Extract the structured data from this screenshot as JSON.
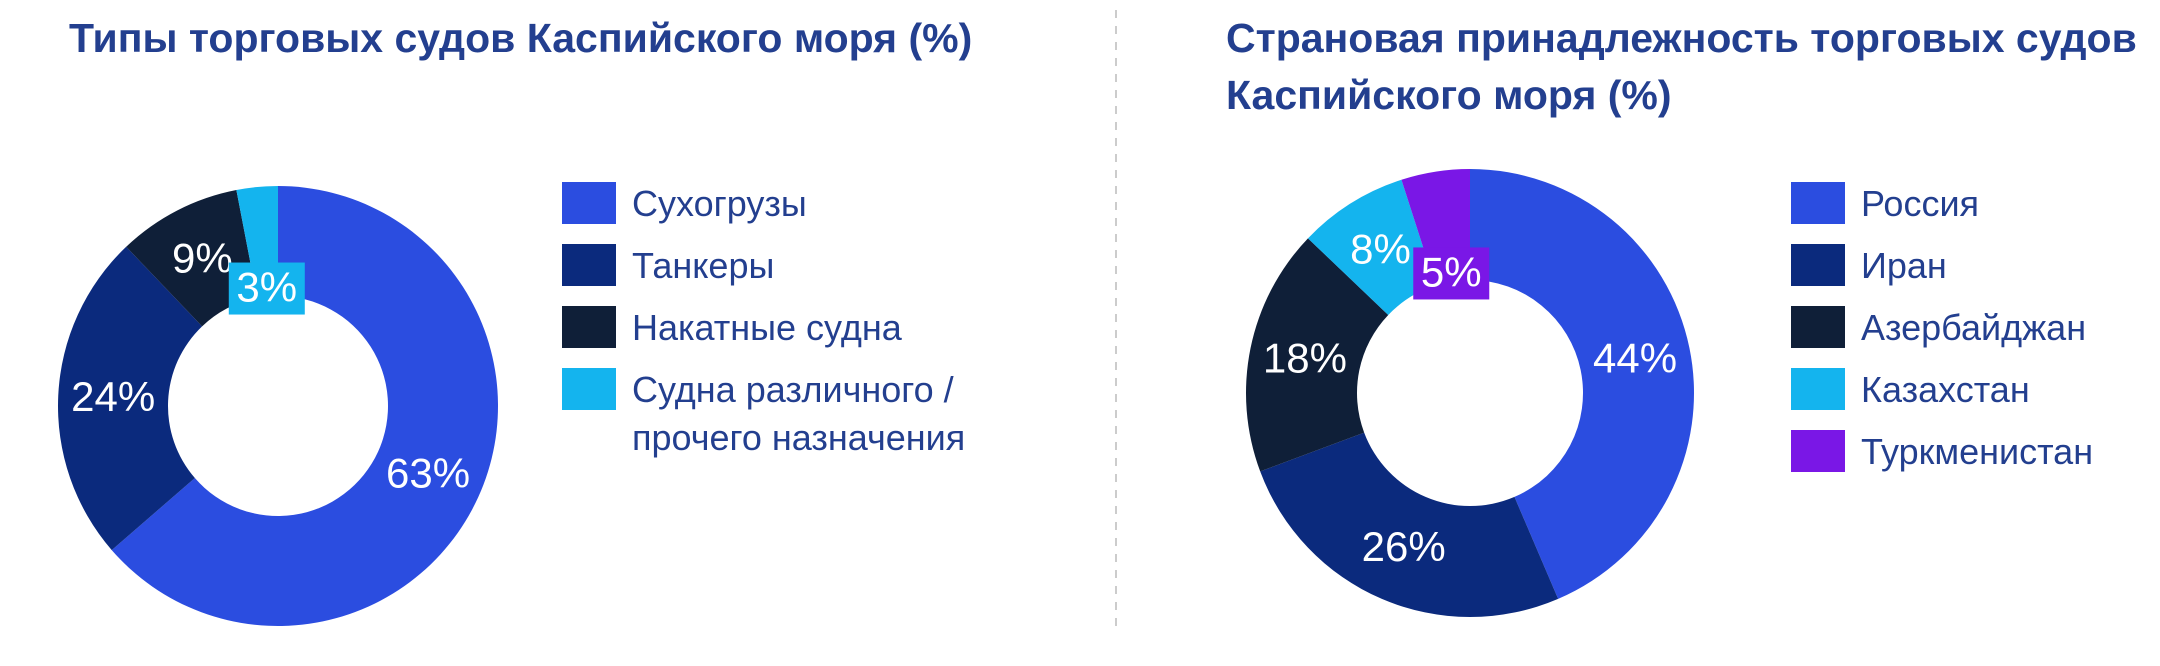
{
  "chart_data": [
    {
      "type": "pie",
      "title": "Типы торговых судов Каспийского моря (%)",
      "categories": [
        "Сухогрузы",
        "Танкеры",
        "Накатные судна",
        "Судна различного / прочего назначения"
      ],
      "values": [
        63,
        24,
        9,
        3
      ],
      "value_labels": [
        "63%",
        "24%",
        "9%",
        "3%"
      ],
      "colors": [
        "#2b4de0",
        "#0b2a7d",
        "#0f1f38",
        "#14b4ee"
      ]
    },
    {
      "type": "pie",
      "title": "Страновая принадлежность торговых судов Каспийского моря (%)",
      "categories": [
        "Россия",
        "Иран",
        "Азербайджан",
        "Казахстан",
        "Туркменистан"
      ],
      "values": [
        44,
        26,
        18,
        8,
        5
      ],
      "value_labels": [
        "44%",
        "26%",
        "18%",
        "8%",
        "5%"
      ],
      "colors": [
        "#2b4de0",
        "#0b2a7d",
        "#0f1f38",
        "#14b4ee",
        "#7a17e6"
      ]
    }
  ]
}
